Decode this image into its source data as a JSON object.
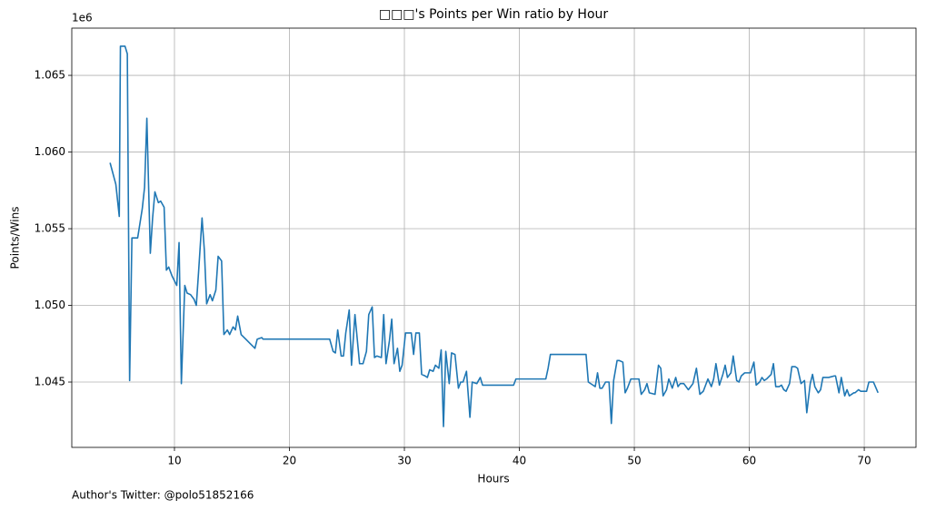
{
  "chart_data": {
    "type": "line",
    "title": "□□□'s Points per Win ratio by Hour",
    "xlabel": "Hours",
    "ylabel": "Points/Wins",
    "y_offset_label": "1e6",
    "footnote": "Author's Twitter: @polo51852166",
    "color": "#1f77b4",
    "grid": true,
    "xlim": [
      1.07,
      74.5
    ],
    "ylim": [
      1.04074,
      1.06808
    ],
    "xticks": [
      10,
      20,
      30,
      40,
      50,
      60,
      70
    ],
    "yticks": [
      1.045,
      {
        "value": 1.05,
        "label": "1.050"
      },
      1.055,
      {
        "value": 1.06,
        "label": "1.060"
      },
      1.065
    ],
    "x": [
      4.4,
      4.9,
      5.2,
      5.3,
      5.7,
      5.9,
      6.1,
      6.3,
      6.8,
      7.2,
      7.4,
      7.6,
      7.9,
      8.1,
      8.3,
      8.6,
      8.8,
      9.1,
      9.3,
      9.5,
      9.8,
      10.2,
      10.4,
      10.6,
      10.9,
      11.1,
      11.4,
      11.7,
      11.9,
      12.1,
      12.4,
      12.6,
      12.8,
      13.1,
      13.3,
      13.6,
      13.8,
      14.1,
      14.3,
      14.6,
      14.8,
      15.1,
      15.3,
      15.5,
      15.8,
      16.2,
      16.6,
      17.0,
      17.2,
      17.6,
      17.7,
      23.5,
      23.8,
      24.0,
      24.2,
      24.5,
      24.7,
      24.9,
      25.2,
      25.4,
      25.7,
      25.9,
      26.1,
      26.4,
      26.7,
      26.9,
      27.2,
      27.4,
      27.6,
      28.0,
      28.2,
      28.4,
      28.7,
      28.9,
      29.1,
      29.4,
      29.6,
      29.8,
      30.1,
      30.6,
      30.8,
      31.0,
      31.3,
      31.5,
      31.8,
      32.0,
      32.2,
      32.5,
      32.7,
      33.0,
      33.2,
      33.4,
      33.6,
      33.9,
      34.1,
      34.4,
      34.7,
      34.9,
      35.1,
      35.4,
      35.7,
      35.9,
      36.3,
      36.6,
      36.8,
      37.1,
      39.5,
      39.7,
      42.3,
      42.5,
      42.7,
      45.8,
      46.0,
      46.4,
      46.6,
      46.8,
      47.0,
      47.2,
      47.5,
      47.8,
      48.0,
      48.2,
      48.5,
      48.7,
      49.0,
      49.2,
      49.4,
      49.7,
      50.4,
      50.6,
      50.9,
      51.1,
      51.3,
      51.8,
      52.1,
      52.3,
      52.5,
      52.8,
      53.0,
      53.3,
      53.6,
      53.8,
      54.0,
      54.3,
      54.7,
      55.1,
      55.4,
      55.7,
      56.0,
      56.2,
      56.4,
      56.7,
      56.9,
      57.1,
      57.4,
      57.7,
      57.9,
      58.1,
      58.4,
      58.6,
      58.9,
      59.1,
      59.3,
      59.6,
      59.8,
      60.1,
      60.4,
      60.6,
      60.9,
      61.1,
      61.3,
      61.5,
      61.9,
      62.1,
      62.3,
      62.6,
      62.8,
      63.0,
      63.2,
      63.5,
      63.7,
      64.0,
      64.2,
      64.5,
      64.8,
      65.0,
      65.3,
      65.5,
      65.7,
      66.0,
      66.2,
      66.4,
      66.9,
      67.4,
      67.5,
      67.8,
      68.0,
      68.3,
      68.5,
      68.7,
      69.1,
      69.2,
      69.5,
      69.7,
      70.2,
      70.4,
      70.8,
      71.2
    ],
    "values": [
      1.0593,
      1.0579,
      1.0558,
      1.0669,
      1.0669,
      1.0664,
      1.0451,
      1.0544,
      1.0544,
      1.0563,
      1.0577,
      1.0622,
      1.0534,
      1.0557,
      1.0574,
      1.0567,
      1.0568,
      1.0564,
      1.0523,
      1.0525,
      1.0519,
      1.0513,
      1.0541,
      1.0449,
      1.0513,
      1.0508,
      1.0507,
      1.0504,
      1.05,
      1.0522,
      1.0557,
      1.0536,
      1.0501,
      1.0507,
      1.0503,
      1.051,
      1.0532,
      1.0529,
      1.0481,
      1.0484,
      1.0481,
      1.0486,
      1.0484,
      1.0493,
      1.0481,
      1.0478,
      1.0475,
      1.0472,
      1.0478,
      1.0479,
      1.0478,
      1.0478,
      1.047,
      1.0469,
      1.0484,
      1.0467,
      1.0467,
      1.0482,
      1.0497,
      1.0461,
      1.0494,
      1.0478,
      1.0462,
      1.0462,
      1.047,
      1.0494,
      1.0499,
      1.0466,
      1.0467,
      1.0466,
      1.0494,
      1.0462,
      1.0477,
      1.0491,
      1.0462,
      1.0472,
      1.0457,
      1.0461,
      1.0482,
      1.0482,
      1.0468,
      1.0482,
      1.0482,
      1.0455,
      1.0454,
      1.0453,
      1.0458,
      1.0457,
      1.0461,
      1.0459,
      1.0471,
      1.0421,
      1.047,
      1.0449,
      1.0469,
      1.0468,
      1.0446,
      1.045,
      1.045,
      1.0457,
      1.0427,
      1.045,
      1.0449,
      1.0453,
      1.0448,
      1.0448,
      1.0448,
      1.0452,
      1.0452,
      1.0459,
      1.0468,
      1.0468,
      1.045,
      1.0448,
      1.0447,
      1.0456,
      1.0446,
      1.0446,
      1.045,
      1.045,
      1.0423,
      1.0451,
      1.0464,
      1.0464,
      1.0463,
      1.0443,
      1.0446,
      1.0452,
      1.0452,
      1.0442,
      1.0445,
      1.0449,
      1.0443,
      1.0442,
      1.0461,
      1.0459,
      1.0441,
      1.0445,
      1.0452,
      1.0446,
      1.0453,
      1.0447,
      1.0449,
      1.0449,
      1.0445,
      1.0449,
      1.0459,
      1.0442,
      1.0444,
      1.0448,
      1.0452,
      1.0447,
      1.0452,
      1.0462,
      1.0448,
      1.0455,
      1.0461,
      1.0453,
      1.0456,
      1.0467,
      1.0451,
      1.045,
      1.0454,
      1.0456,
      1.0456,
      1.0456,
      1.0463,
      1.0448,
      1.045,
      1.0453,
      1.0451,
      1.0452,
      1.0455,
      1.0462,
      1.0447,
      1.0447,
      1.0448,
      1.0445,
      1.0444,
      1.0449,
      1.046,
      1.046,
      1.0459,
      1.0449,
      1.0451,
      1.043,
      1.0449,
      1.0455,
      1.0447,
      1.0443,
      1.0445,
      1.0453,
      1.0453,
      1.0454,
      1.0454,
      1.0443,
      1.0453,
      1.0441,
      1.0445,
      1.0441,
      1.0443,
      1.0443,
      1.0445,
      1.0444,
      1.0444,
      1.045,
      1.045,
      1.0443
    ]
  }
}
